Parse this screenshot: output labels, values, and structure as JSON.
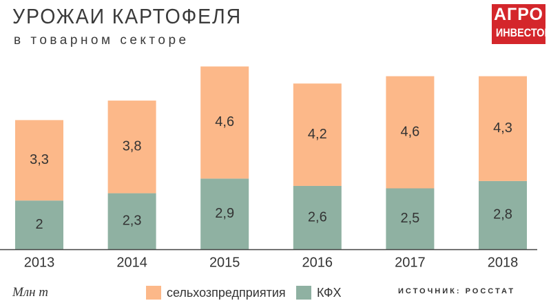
{
  "header": {
    "title": "УРОЖАИ КАРТОФЕЛЯ",
    "subtitle": "в товарном секторе",
    "logo_line1": "АГРО",
    "logo_line2": "ИНВЕСТОР"
  },
  "footer": {
    "units": "Млн т",
    "source": "ИСТОЧНИК: РОССТАТ"
  },
  "colors": {
    "kfh": "#8fb1a2",
    "agro": "#fcb889",
    "axis": "#444444",
    "logo": "#d4262b"
  },
  "chart_data": {
    "type": "bar",
    "stacked": true,
    "categories": [
      "2013",
      "2014",
      "2015",
      "2016",
      "2017",
      "2018"
    ],
    "series": [
      {
        "name": "КФХ",
        "values": [
          2,
          2.3,
          2.9,
          2.6,
          2.5,
          2.8
        ],
        "labels": [
          "2",
          "2,3",
          "2,9",
          "2,6",
          "2,5",
          "2,8"
        ]
      },
      {
        "name": "сельхозпредприятия",
        "values": [
          3.3,
          3.8,
          4.6,
          4.2,
          4.6,
          4.3
        ],
        "labels": [
          "3,3",
          "3,8",
          "4,6",
          "4,2",
          "4,6",
          "4,3"
        ]
      }
    ],
    "ylim": [
      0,
      7.5
    ],
    "grid": false,
    "legend": "bottom"
  }
}
